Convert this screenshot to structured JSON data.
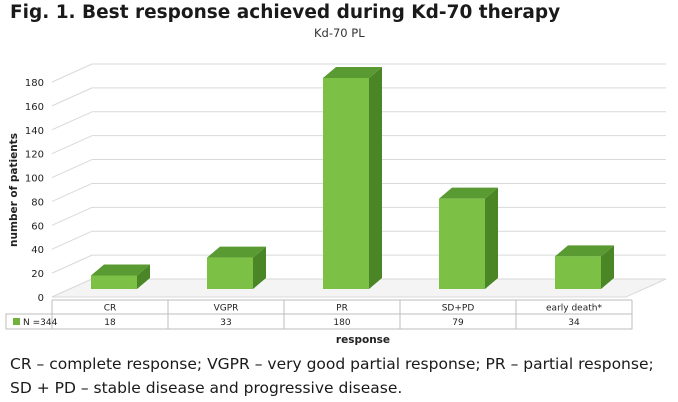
{
  "figure": {
    "title": "Fig. 1. Best response achieved during Kd-70 therapy",
    "caption": "CR – complete response; VGPR – very good partial response; PR – partial response; SD + PD – stable disease and progressive disease."
  },
  "chart_data": {
    "type": "bar",
    "title": "Kd-70 PL",
    "xlabel": "response",
    "ylabel": "number of patients",
    "categories": [
      "CR",
      "VGPR",
      "PR",
      "SD+PD",
      "early death*"
    ],
    "series": [
      {
        "name": "N =344",
        "values": [
          18,
          33,
          180,
          79,
          34
        ]
      }
    ],
    "yticks": [
      0,
      20,
      40,
      60,
      80,
      100,
      120,
      140,
      160,
      180
    ],
    "ylim": [
      0,
      180
    ],
    "grid": true,
    "legend_position": "data-table-left",
    "colors": {
      "front": "#7cc045",
      "side": "#4a8526",
      "top": "#5a9a32",
      "grid": "#d9d9d9",
      "legend_key": "#70b23c"
    }
  }
}
